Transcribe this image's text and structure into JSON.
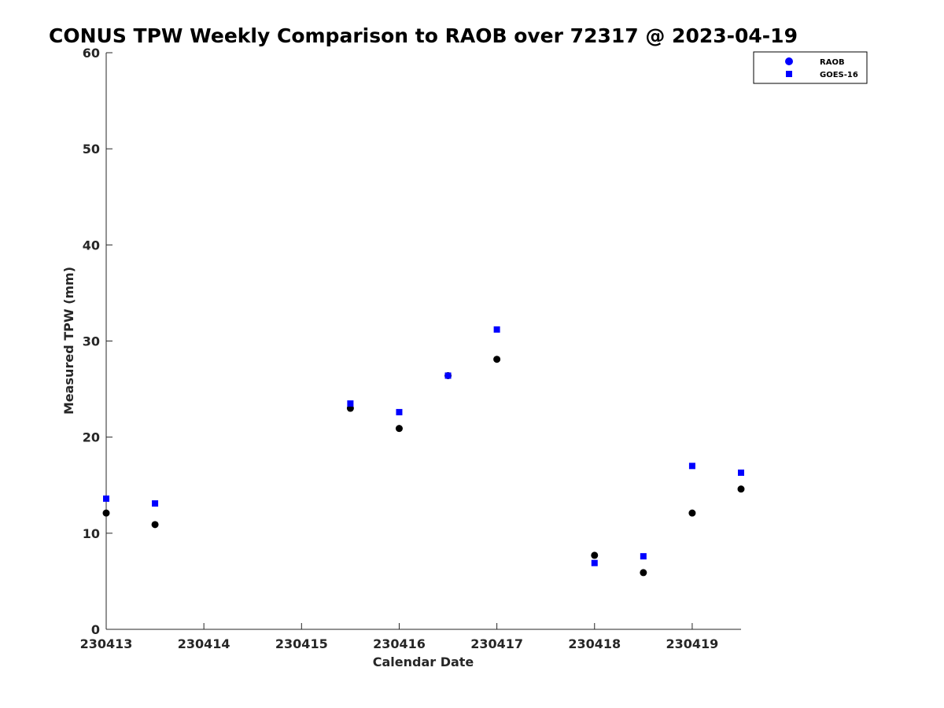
{
  "chart_data": {
    "type": "scatter",
    "title": "CONUS TPW Weekly Comparison to RAOB over 72317 @ 2023-04-19",
    "xlabel": "Calendar Date",
    "ylabel": "Measured TPW (mm)",
    "x_tick_labels": [
      "230413",
      "230414",
      "230415",
      "230416",
      "230417",
      "230418",
      "230419"
    ],
    "xlim": [
      0,
      6.5
    ],
    "ylim": [
      0,
      60
    ],
    "y_ticks": [
      0,
      10,
      20,
      30,
      40,
      50,
      60
    ],
    "grid": false,
    "legend_position": "top-right",
    "series": [
      {
        "name": "RAOB",
        "marker": "circle",
        "color": "#000000",
        "legend_color": "#0000ff",
        "points": [
          {
            "x": 0,
            "y": 12.1
          },
          {
            "x": 0.5,
            "y": 10.9
          },
          {
            "x": 2.5,
            "y": 23.0
          },
          {
            "x": 3,
            "y": 20.9
          },
          {
            "x": 3.5,
            "y": 26.4
          },
          {
            "x": 4,
            "y": 28.1
          },
          {
            "x": 5,
            "y": 7.7
          },
          {
            "x": 5.5,
            "y": 5.9
          },
          {
            "x": 6,
            "y": 12.1
          },
          {
            "x": 6.5,
            "y": 14.6
          }
        ]
      },
      {
        "name": "GOES-16",
        "marker": "square",
        "color": "#0000ff",
        "legend_color": "#0000ff",
        "points": [
          {
            "x": 0,
            "y": 13.6
          },
          {
            "x": 0.5,
            "y": 13.1
          },
          {
            "x": 2.5,
            "y": 23.5
          },
          {
            "x": 3,
            "y": 22.6
          },
          {
            "x": 3.5,
            "y": 26.4
          },
          {
            "x": 4,
            "y": 31.2
          },
          {
            "x": 5,
            "y": 6.9
          },
          {
            "x": 5.5,
            "y": 7.6
          },
          {
            "x": 6,
            "y": 17.0
          },
          {
            "x": 6.5,
            "y": 16.3
          }
        ]
      }
    ]
  }
}
